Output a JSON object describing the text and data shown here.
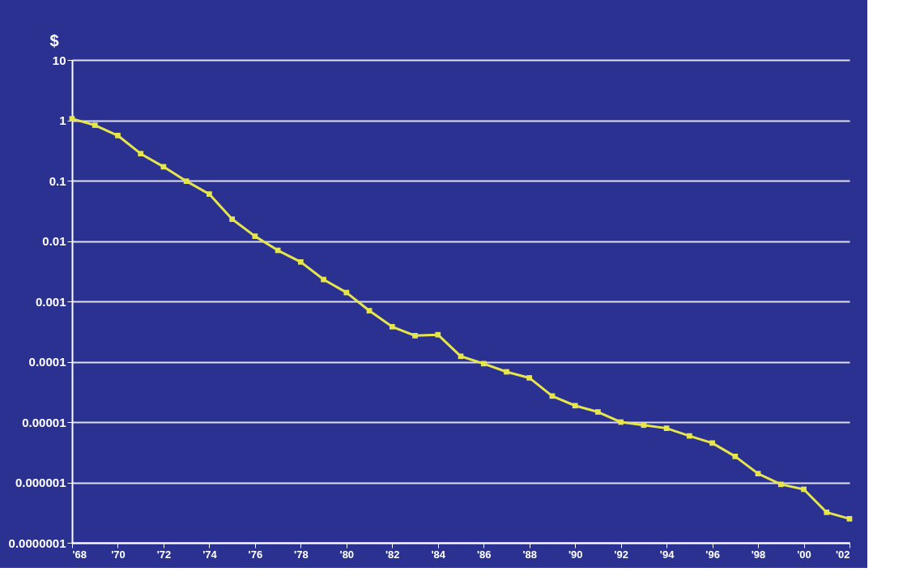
{
  "chart_data": {
    "type": "line",
    "ylabel": "$",
    "log": "y",
    "grid": "y",
    "marker": "square",
    "line_style": "solid",
    "x": [
      1968,
      1969,
      1970,
      1971,
      1972,
      1973,
      1974,
      1975,
      1976,
      1977,
      1978,
      1979,
      1980,
      1981,
      1982,
      1983,
      1984,
      1985,
      1986,
      1987,
      1988,
      1989,
      1990,
      1991,
      1992,
      1993,
      1994,
      1995,
      1996,
      1997,
      1998,
      1999,
      2000,
      2001,
      2002
    ],
    "series": [
      {
        "color": "#e6e64c",
        "values": [
          1.06,
          0.83,
          0.56,
          0.28,
          0.17,
          0.098,
          0.06,
          0.023,
          0.012,
          0.007,
          0.0045,
          0.0023,
          0.0014,
          0.0007,
          0.00038,
          0.00027,
          0.00028,
          0.000123,
          9.3e-05,
          6.8e-05,
          5.4e-05,
          2.7e-05,
          1.87e-05,
          1.47e-05,
          1e-05,
          8.9e-06,
          7.9e-06,
          5.9e-06,
          4.5e-06,
          2.7e-06,
          1.4e-06,
          9.3e-07,
          7.7e-07,
          3.2e-07,
          2.5e-07
        ]
      }
    ],
    "xlim": [
      1968,
      2002
    ],
    "xticks": [
      {
        "value": 1968,
        "label": "'68"
      },
      {
        "value": 1970,
        "label": "'70"
      },
      {
        "value": 1972,
        "label": "'72"
      },
      {
        "value": 1974,
        "label": "'74"
      },
      {
        "value": 1976,
        "label": "'76"
      },
      {
        "value": 1978,
        "label": "'78"
      },
      {
        "value": 1980,
        "label": "'80"
      },
      {
        "value": 1982,
        "label": "'82"
      },
      {
        "value": 1984,
        "label": "'84"
      },
      {
        "value": 1986,
        "label": "'86"
      },
      {
        "value": 1988,
        "label": "'88"
      },
      {
        "value": 1990,
        "label": "'90"
      },
      {
        "value": 1992,
        "label": "'92"
      },
      {
        "value": 1994,
        "label": "'94"
      },
      {
        "value": 1996,
        "label": "'96"
      },
      {
        "value": 1998,
        "label": "'98"
      },
      {
        "value": 2000,
        "label": "'00"
      },
      {
        "value": 2002,
        "label": "'02"
      }
    ],
    "ylim": [
      1e-07,
      10
    ],
    "yticks": [
      {
        "value": 1e-07,
        "label": "0.0000001"
      },
      {
        "value": 1e-06,
        "label": "0.000001"
      },
      {
        "value": 1e-05,
        "label": "0.00001"
      },
      0.0001,
      0.001,
      0.01,
      0.1,
      1,
      10
    ]
  }
}
